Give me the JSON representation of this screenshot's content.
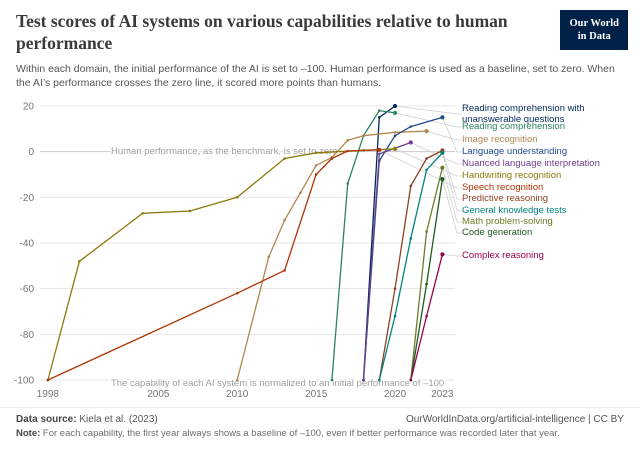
{
  "header": {
    "title": "Test scores of AI systems on various capabilities relative to human performance",
    "subtitle": "Within each domain, the initial performance of the AI is set to –100. Human performance is used as a baseline, set to zero. When the AI’s performance crosses the zero line, it scored more points than humans.",
    "logo": {
      "line1": "Our World",
      "line2": "in Data",
      "bg": "#002147"
    }
  },
  "chart_data": {
    "type": "line",
    "title": "Test scores of AI systems on various capabilities relative to human performance",
    "xlabel": "",
    "ylabel": "",
    "xlim": [
      1998,
      2023
    ],
    "ylim": [
      -100,
      20
    ],
    "x_ticks": [
      1998,
      2005,
      2010,
      2015,
      2020,
      2023
    ],
    "y_ticks": [
      20,
      0,
      -20,
      -40,
      -60,
      -80,
      -100
    ],
    "grid": "horizontal",
    "legend_position": "right",
    "annotations": [
      {
        "x": 2002,
        "y": 0,
        "text": "Human performance, as the benchmark, is set to zero"
      },
      {
        "x": 2002,
        "y": -101.5,
        "text": "The capability of each AI system is normalized to an initial performance of –100"
      }
    ],
    "series": [
      {
        "name": "Reading comprehension with unanswerable questions",
        "color": "#00295b",
        "points": [
          [
            2018,
            -100
          ],
          [
            2019,
            15
          ],
          [
            2020,
            20
          ]
        ]
      },
      {
        "name": "Reading comprehension",
        "color": "#2c8465",
        "points": [
          [
            2016,
            -100
          ],
          [
            2017,
            -14
          ],
          [
            2018,
            7
          ],
          [
            2019,
            18
          ],
          [
            2020,
            17
          ]
        ]
      },
      {
        "name": "Image recognition",
        "color": "#b0884f",
        "points": [
          [
            2010,
            -100
          ],
          [
            2012,
            -46
          ],
          [
            2013,
            -30
          ],
          [
            2014,
            -18
          ],
          [
            2015,
            -6
          ],
          [
            2016,
            -2.5
          ],
          [
            2017,
            5
          ],
          [
            2018,
            7
          ],
          [
            2020,
            8.5
          ],
          [
            2022,
            9
          ]
        ]
      },
      {
        "name": "Language understanding",
        "color": "#1f4b8e",
        "points": [
          [
            2018,
            -100
          ],
          [
            2019,
            -4
          ],
          [
            2020,
            7
          ],
          [
            2021,
            11
          ],
          [
            2023,
            15
          ]
        ]
      },
      {
        "name": "Nuanced language interpretation",
        "color": "#6d3e91",
        "points": [
          [
            2018,
            -100
          ],
          [
            2019,
            -1
          ],
          [
            2021,
            4
          ]
        ]
      },
      {
        "name": "Handwriting recognition",
        "color": "#8a7a0c",
        "points": [
          [
            1998,
            -100
          ],
          [
            2000,
            -48
          ],
          [
            2004,
            -27
          ],
          [
            2007,
            -26
          ],
          [
            2010,
            -20
          ],
          [
            2013,
            -3
          ],
          [
            2015,
            -0.5
          ],
          [
            2018,
            0.6
          ],
          [
            2020,
            1.2
          ]
        ]
      },
      {
        "name": "Speech recognition",
        "color": "#b13507",
        "points": [
          [
            1998,
            -100
          ],
          [
            2010,
            -62
          ],
          [
            2013,
            -52
          ],
          [
            2015,
            -10
          ],
          [
            2016,
            -3
          ],
          [
            2017,
            0.3
          ],
          [
            2019,
            0.8
          ]
        ]
      },
      {
        "name": "Predictive reasoning",
        "color": "#8c4122",
        "points": [
          [
            2019,
            -100
          ],
          [
            2020,
            -60
          ],
          [
            2021,
            -15
          ],
          [
            2022,
            -3
          ],
          [
            2023,
            0.5
          ]
        ]
      },
      {
        "name": "General knowledge tests",
        "color": "#00847e",
        "points": [
          [
            2019,
            -100
          ],
          [
            2020,
            -72
          ],
          [
            2021,
            -38
          ],
          [
            2022,
            -8
          ],
          [
            2023,
            -0.5
          ]
        ]
      },
      {
        "name": "Math problem-solving",
        "color": "#6d7c2b",
        "points": [
          [
            2021,
            -100
          ],
          [
            2022,
            -35
          ],
          [
            2023,
            -7
          ]
        ]
      },
      {
        "name": "Code generation",
        "color": "#1e5c1e",
        "points": [
          [
            2021,
            -100
          ],
          [
            2022,
            -58
          ],
          [
            2023,
            -12
          ]
        ]
      },
      {
        "name": "Complex reasoning",
        "color": "#970046",
        "points": [
          [
            2021,
            -100
          ],
          [
            2022,
            -72
          ],
          [
            2023,
            -45
          ]
        ]
      }
    ]
  },
  "footer": {
    "source_label": "Data source:",
    "source_text": "Kiela et al. (2023)",
    "link_text": "OurWorldInData.org/artificial-intelligence | CC BY",
    "note_label": "Note:",
    "note_text": "For each capability, the first year always shows a baseline of –100, even if better performance was recorded later that year."
  }
}
